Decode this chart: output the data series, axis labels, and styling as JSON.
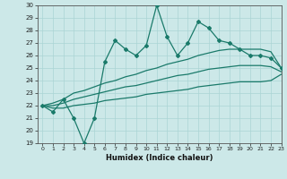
{
  "xlabel": "Humidex (Indice chaleur)",
  "bg_color": "#cce8e8",
  "line_color": "#1a7a6a",
  "grid_color": "#aad4d4",
  "x_values": [
    0,
    1,
    2,
    3,
    4,
    5,
    6,
    7,
    8,
    9,
    10,
    11,
    12,
    13,
    14,
    15,
    16,
    17,
    18,
    19,
    20,
    21,
    22,
    23
  ],
  "main_y": [
    22.0,
    21.5,
    22.5,
    21.0,
    19.0,
    21.0,
    25.5,
    27.2,
    26.5,
    26.0,
    26.8,
    30.0,
    27.5,
    26.0,
    27.0,
    28.7,
    28.2,
    27.2,
    27.0,
    26.5,
    26.0,
    26.0,
    25.8,
    25.0
  ],
  "upper_y": [
    22.0,
    22.2,
    22.5,
    23.0,
    23.2,
    23.5,
    23.8,
    24.0,
    24.3,
    24.5,
    24.8,
    25.0,
    25.3,
    25.5,
    25.7,
    26.0,
    26.2,
    26.4,
    26.5,
    26.5,
    26.5,
    26.5,
    26.3,
    25.0
  ],
  "mid_y": [
    22.0,
    22.0,
    22.2,
    22.5,
    22.7,
    22.9,
    23.1,
    23.3,
    23.5,
    23.6,
    23.8,
    24.0,
    24.2,
    24.4,
    24.5,
    24.7,
    24.9,
    25.0,
    25.1,
    25.2,
    25.2,
    25.2,
    25.1,
    24.7
  ],
  "lower_y": [
    22.0,
    21.8,
    21.8,
    22.0,
    22.1,
    22.2,
    22.4,
    22.5,
    22.6,
    22.7,
    22.9,
    23.0,
    23.1,
    23.2,
    23.3,
    23.5,
    23.6,
    23.7,
    23.8,
    23.9,
    23.9,
    23.9,
    24.0,
    24.5
  ],
  "ylim": [
    19,
    30
  ],
  "xlim": [
    -0.5,
    23
  ],
  "yticks": [
    19,
    20,
    21,
    22,
    23,
    24,
    25,
    26,
    27,
    28,
    29,
    30
  ],
  "xticks": [
    0,
    1,
    2,
    3,
    4,
    5,
    6,
    7,
    8,
    9,
    10,
    11,
    12,
    13,
    14,
    15,
    16,
    17,
    18,
    19,
    20,
    21,
    22,
    23
  ]
}
